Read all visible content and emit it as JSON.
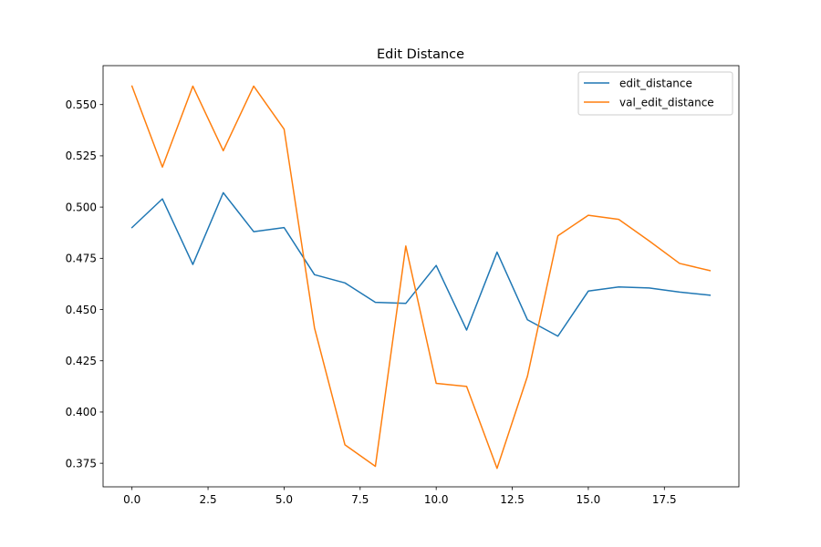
{
  "chart_data": {
    "type": "line",
    "title": "Edit Distance",
    "xlabel": "",
    "ylabel": "",
    "xlim": [
      -0.95,
      19.95
    ],
    "ylim": [
      0.3635,
      0.569
    ],
    "xticks": [
      0,
      2.5,
      5,
      7.5,
      10,
      12.5,
      15,
      17.5
    ],
    "xtick_labels": [
      "0.0",
      "2.5",
      "5.0",
      "7.5",
      "10.0",
      "12.5",
      "15.0",
      "17.5"
    ],
    "yticks": [
      0.375,
      0.4,
      0.425,
      0.45,
      0.475,
      0.5,
      0.525,
      0.55
    ],
    "ytick_labels": [
      "0.375",
      "0.400",
      "0.425",
      "0.450",
      "0.475",
      "0.500",
      "0.525",
      "0.550"
    ],
    "grid": false,
    "legend_position": "top-right",
    "x": [
      0,
      1,
      2,
      3,
      4,
      5,
      6,
      7,
      8,
      9,
      10,
      11,
      12,
      13,
      14,
      15,
      16,
      17,
      18,
      19
    ],
    "series": [
      {
        "name": "edit_distance",
        "color": "#1f77b4",
        "values": [
          0.49,
          0.504,
          0.472,
          0.507,
          0.488,
          0.49,
          0.467,
          0.463,
          0.4535,
          0.453,
          0.4715,
          0.44,
          0.478,
          0.445,
          0.437,
          0.459,
          0.461,
          0.4605,
          0.4585,
          0.457
        ]
      },
      {
        "name": "val_edit_distance",
        "color": "#ff7f0e",
        "values": [
          0.559,
          0.5195,
          0.559,
          0.5275,
          0.559,
          0.538,
          0.441,
          0.384,
          0.3735,
          0.481,
          0.414,
          0.4125,
          0.3725,
          0.4175,
          0.486,
          0.496,
          0.494,
          0.4835,
          0.4725,
          0.469
        ]
      }
    ]
  }
}
